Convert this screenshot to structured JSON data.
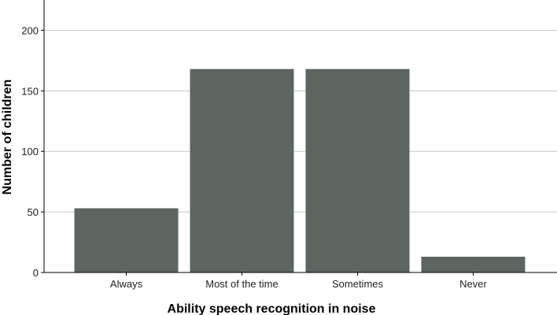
{
  "chart_data": {
    "type": "bar",
    "title": "",
    "xlabel": "Ability speech recognition in noise",
    "ylabel": "Number of children",
    "categories": [
      "Always",
      "Most of the time",
      "Sometimes",
      "Never"
    ],
    "values": [
      53,
      168,
      168,
      13
    ],
    "ylim": [
      0,
      225
    ],
    "yticks": [
      0,
      50,
      100,
      150,
      200
    ],
    "grid": true,
    "bar_color": "#5c6560",
    "grid_color": "#c8c8c8",
    "axis_color": "#000000"
  }
}
